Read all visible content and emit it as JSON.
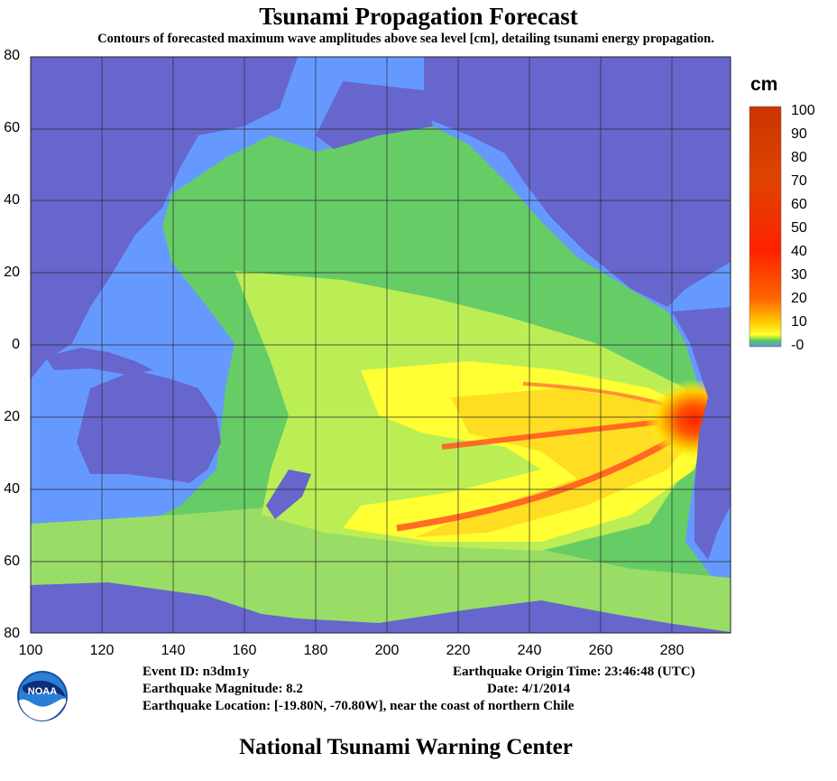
{
  "title": "Tsunami Propagation Forecast",
  "subtitle": "Contours of forecasted maximum wave amplitudes above sea level [cm], detailing tsunami energy propagation.",
  "map": {
    "lat_ticks": [
      "80",
      "60",
      "40",
      "20",
      "0",
      "20",
      "40",
      "60",
      "80"
    ],
    "lon_ticks": [
      "100",
      "120",
      "140",
      "160",
      "180",
      "200",
      "220",
      "240",
      "260",
      "280"
    ],
    "colors": {
      "land": "#6666cc",
      "shallow_sea": "#6699ff",
      "low_wave": "#66cc66",
      "medium_wave": "#bbee55",
      "high_wave": "#ffff33",
      "peak_wave": "#ff2200"
    }
  },
  "legend": {
    "unit": "cm",
    "labels": [
      "100",
      "90",
      "80",
      "70",
      "60",
      "50",
      "40",
      "30",
      "20",
      "10",
      "-0"
    ],
    "colors": [
      "#cc3300",
      "#cc3300",
      "#cc3300",
      "#d83a00",
      "#dd4400",
      "#ee4400",
      "#ff3300",
      "#ff1a00",
      "#ff5500",
      "#ffbb00",
      "#ffff33",
      "#55cc55",
      "#6688ee"
    ]
  },
  "info": {
    "event_id": "Event ID: n3dm1y",
    "magnitude": "Earthquake Magnitude: 8.2",
    "location": "Earthquake Location: [-19.80N, -70.80W], near the coast of northern Chile",
    "origin_time": "Earthquake Origin Time: 23:46:48 (UTC)",
    "date": "Date: 4/1/2014"
  },
  "logo": {
    "text": "NOAA",
    "icon": "noaa-logo-icon"
  },
  "footer": "National Tsunami Warning Center"
}
